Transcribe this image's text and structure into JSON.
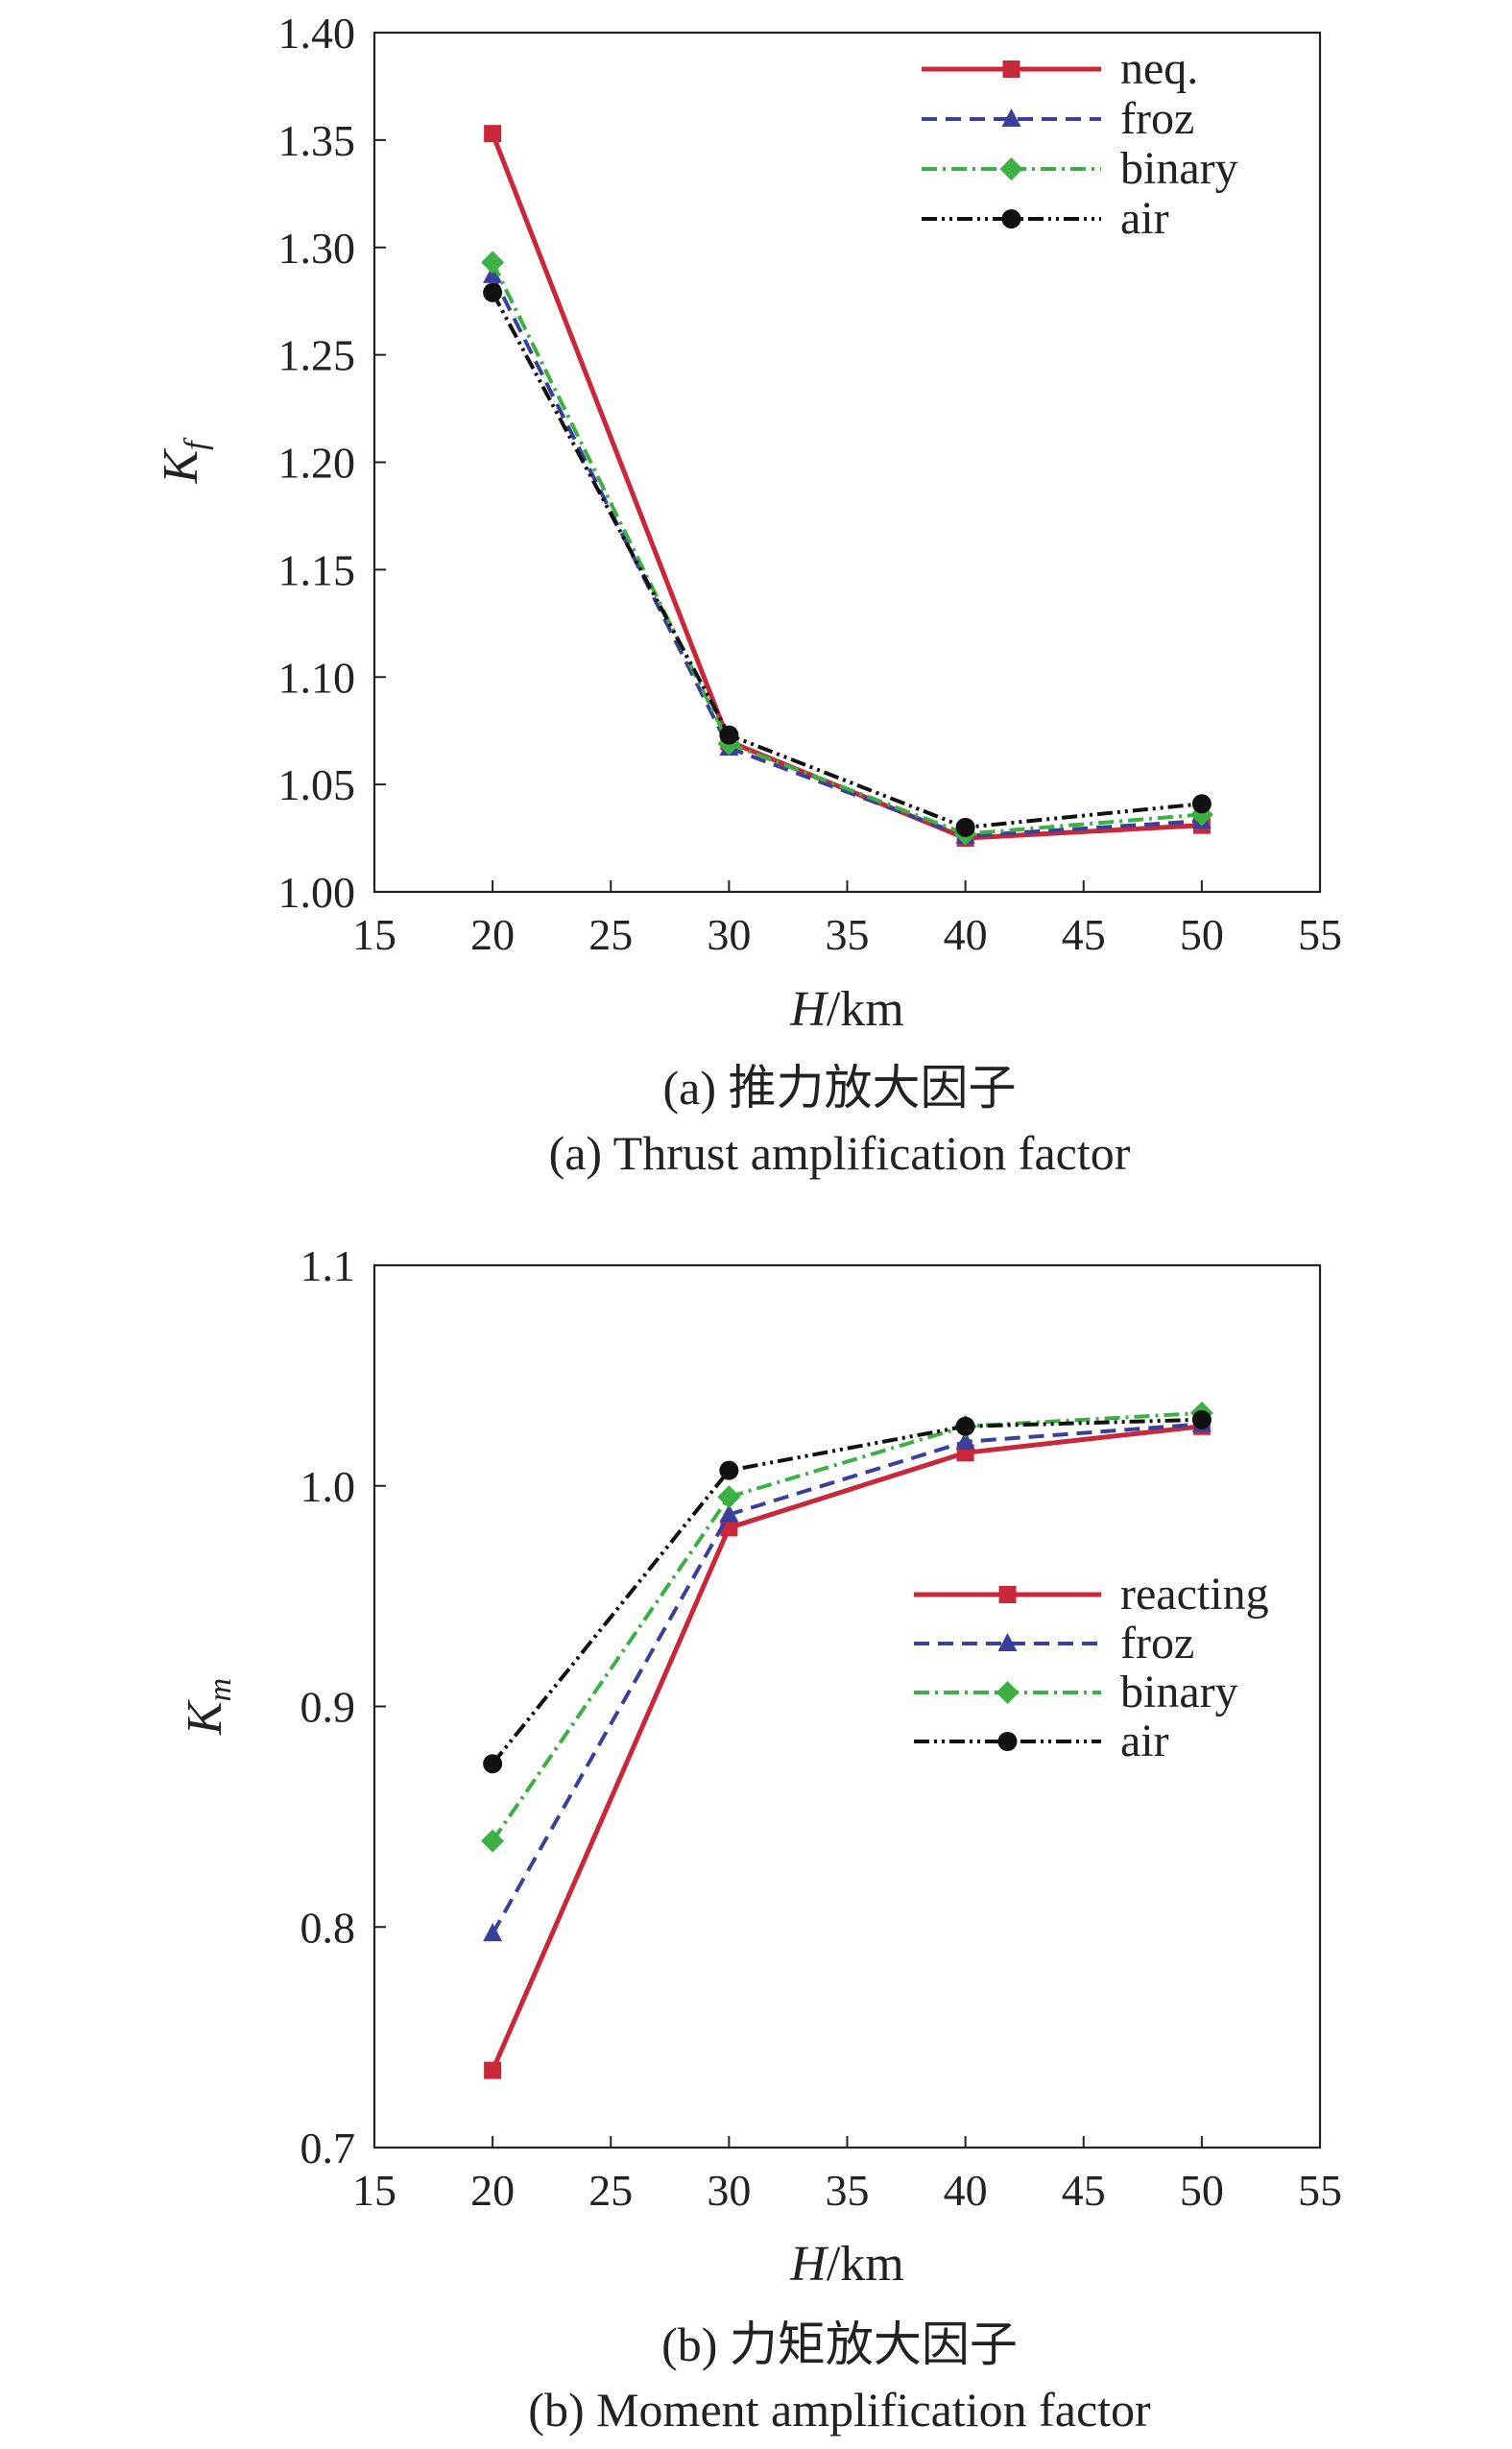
{
  "chart_data": [
    {
      "type": "line",
      "x_axis_label_italic": "H",
      "x_axis_label_unit": "/km",
      "y_axis_label_main": "K",
      "y_axis_label_sub": "f",
      "xlim": [
        15,
        55
      ],
      "ylim": [
        1.0,
        1.4
      ],
      "x_ticks": [
        "15",
        "20",
        "25",
        "30",
        "35",
        "40",
        "45",
        "50",
        "55"
      ],
      "y_ticks": [
        "1.00",
        "1.05",
        "1.10",
        "1.15",
        "1.20",
        "1.25",
        "1.30",
        "1.35",
        "1.40"
      ],
      "legend_position": "top-right",
      "caption_cn": "(a) 推力放大因子",
      "caption_en": "(a) Thrust amplification factor",
      "x": [
        20,
        30,
        40,
        50
      ],
      "series": [
        {
          "name": "neq.",
          "values": [
            1.353,
            1.07,
            1.025,
            1.031
          ],
          "color": "#c8283a",
          "dash": "solid",
          "marker": "square"
        },
        {
          "name": "froz",
          "values": [
            1.287,
            1.067,
            1.026,
            1.033
          ],
          "color": "#3a3f9a",
          "dash": "dash",
          "marker": "triangle"
        },
        {
          "name": "binary",
          "values": [
            1.293,
            1.069,
            1.027,
            1.036
          ],
          "color": "#3cb043",
          "dash": "dashdot",
          "marker": "diamond"
        },
        {
          "name": "air",
          "values": [
            1.279,
            1.073,
            1.03,
            1.041
          ],
          "color": "#111111",
          "dash": "dashdotdot",
          "marker": "circle"
        }
      ]
    },
    {
      "type": "line",
      "x_axis_label_italic": "H",
      "x_axis_label_unit": "/km",
      "y_axis_label_main": "K",
      "y_axis_label_sub": "m",
      "xlim": [
        15,
        55
      ],
      "ylim": [
        0.7,
        1.1
      ],
      "x_ticks": [
        "15",
        "20",
        "25",
        "30",
        "35",
        "40",
        "45",
        "50",
        "55"
      ],
      "y_ticks": [
        "0.7",
        "0.8",
        "0.9",
        "1.0",
        "1.1"
      ],
      "legend_position": "center-right",
      "caption_cn": "(b) 力矩放大因子",
      "caption_en": "(b) Moment amplification factor",
      "x": [
        20,
        30,
        40,
        50
      ],
      "series": [
        {
          "name": "reacting",
          "values": [
            0.735,
            0.981,
            1.015,
            1.027
          ],
          "color": "#c8283a",
          "dash": "solid",
          "marker": "square"
        },
        {
          "name": "froz",
          "values": [
            0.797,
            0.987,
            1.02,
            1.028
          ],
          "color": "#3a3f9a",
          "dash": "dash",
          "marker": "triangle"
        },
        {
          "name": "binary",
          "values": [
            0.839,
            0.995,
            1.027,
            1.033
          ],
          "color": "#3cb043",
          "dash": "dashdot",
          "marker": "diamond"
        },
        {
          "name": "air",
          "values": [
            0.874,
            1.007,
            1.027,
            1.03
          ],
          "color": "#111111",
          "dash": "dashdotdot",
          "marker": "circle"
        }
      ]
    }
  ]
}
